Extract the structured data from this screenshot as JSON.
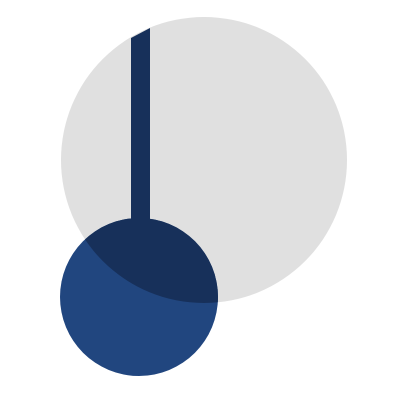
{
  "logo": {
    "icon_name": "pendulum-over-circle-logo",
    "colors": {
      "background": "#ffffff",
      "large_circle": "#e0e0e0",
      "bob": "#21467f",
      "overlap": "#17305a",
      "rod": "#17305a"
    }
  }
}
